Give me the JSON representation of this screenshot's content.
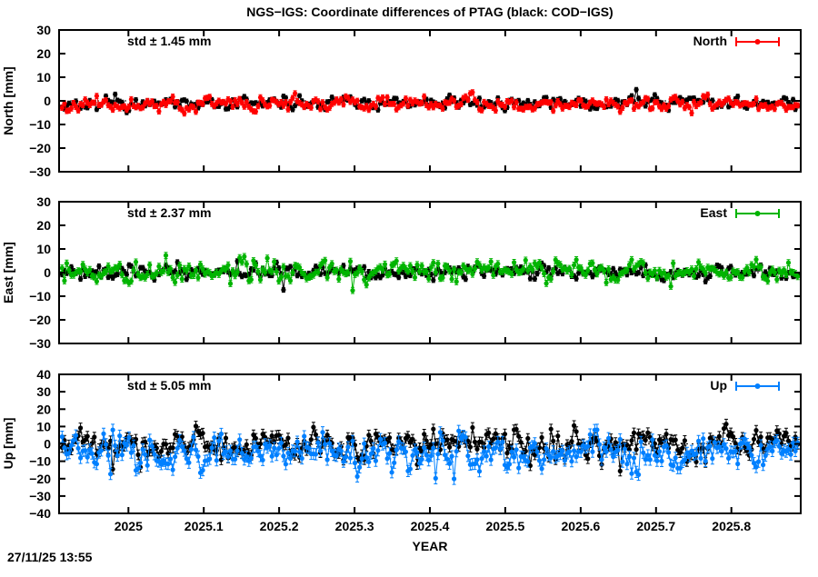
{
  "title": "NGS−IGS: Coordinate differences of PTAG (black: COD−IGS)",
  "timestamp": "27/11/25 13:55",
  "chart_data": {
    "type": "scatter",
    "subtype": "time-series with error bars (gnuplot style)",
    "xlabel": "YEAR",
    "x_range": [
      2024.908,
      2025.892
    ],
    "x_data_range": [
      2024.912,
      2025.888
    ],
    "x_ticks": [
      "2025",
      "2025.1",
      "2025.2",
      "2025.3",
      "2025.4",
      "2025.5",
      "2025.6",
      "2025.7",
      "2025.8"
    ],
    "n_points": 320,
    "grid": false,
    "zero_line": "dotted-black",
    "legend_position": "top-right-inside",
    "panels": [
      {
        "name": "North",
        "ylabel": "North [mm]",
        "legend": "North",
        "std_label": "std ± 1.45 mm",
        "color": "#ff0000",
        "ylim": [
          -30,
          30
        ],
        "yticks": [
          -30,
          -20,
          -10,
          0,
          10,
          20,
          30
        ],
        "series": [
          {
            "name": "COD−IGS",
            "color": "#000000",
            "mean": -0.9,
            "std": 1.5,
            "err": 0.9,
            "seed": 21,
            "spike_prob": 0.005,
            "spike_size": 3
          },
          {
            "name": "NGS−IGS",
            "color": "#ff0000",
            "mean": -1.4,
            "std": 1.45,
            "err": 1.1,
            "seed": 11,
            "spike_prob": 0.005,
            "spike_size": 3
          }
        ]
      },
      {
        "name": "East",
        "ylabel": "East [mm]",
        "legend": "East",
        "std_label": "std ± 2.37 mm",
        "color": "#00b400",
        "ylim": [
          -30,
          30
        ],
        "yticks": [
          -30,
          -20,
          -10,
          0,
          10,
          20,
          30
        ],
        "series": [
          {
            "name": "COD−IGS",
            "color": "#000000",
            "mean": 0.1,
            "std": 1.6,
            "err": 1.0,
            "seed": 41,
            "spike_prob": 0.008,
            "spike_size": 4
          },
          {
            "name": "NGS−IGS",
            "color": "#00b400",
            "mean": 0.9,
            "std": 2.37,
            "err": 1.3,
            "seed": 31,
            "spike_prob": 0.01,
            "spike_size": 5
          }
        ]
      },
      {
        "name": "Up",
        "ylabel": "Up [mm]",
        "legend": "Up",
        "std_label": "std ± 5.05 mm",
        "color": "#0080ff",
        "ylim": [
          -40,
          40
        ],
        "yticks": [
          -40,
          -30,
          -20,
          -10,
          0,
          10,
          20,
          30,
          40
        ],
        "series": [
          {
            "name": "COD−IGS",
            "color": "#000000",
            "mean": -0.8,
            "std": 4.6,
            "err": 2.8,
            "seed": 61,
            "spike_prob": 0.02,
            "spike_size": 5
          },
          {
            "name": "NGS−IGS",
            "color": "#0080ff",
            "mean": -4.2,
            "std": 5.05,
            "err": 3.2,
            "seed": 51,
            "spike_prob": 0.05,
            "spike_size": 7
          }
        ]
      }
    ]
  }
}
